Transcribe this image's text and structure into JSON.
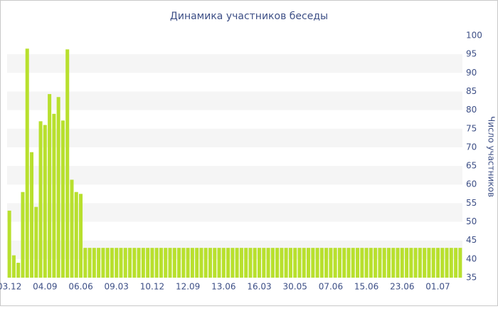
{
  "chart_data": {
    "type": "bar",
    "title": "Динамика участников беседы",
    "y_label": "Число участников",
    "color": "#b8e02e",
    "categories": [
      "03.12",
      null,
      null,
      null,
      null,
      null,
      null,
      null,
      "04.09",
      null,
      null,
      null,
      null,
      null,
      null,
      null,
      "06.06",
      null,
      null,
      null,
      null,
      null,
      null,
      null,
      "09.03",
      null,
      null,
      null,
      null,
      null,
      null,
      null,
      "10.12",
      null,
      null,
      null,
      null,
      null,
      null,
      null,
      "12.09",
      null,
      null,
      null,
      null,
      null,
      null,
      null,
      "13.06",
      null,
      null,
      null,
      null,
      null,
      null,
      null,
      "16.03",
      null,
      null,
      null,
      null,
      null,
      null,
      null,
      "30.05",
      null,
      null,
      null,
      null,
      null,
      null,
      null,
      "07.06",
      null,
      null,
      null,
      null,
      null,
      null,
      null,
      "15.06",
      null,
      null,
      null,
      null,
      null,
      null,
      null,
      "23.06",
      null,
      null,
      null,
      null,
      null,
      null,
      null,
      "01.07",
      null,
      null,
      null,
      null,
      null
    ],
    "values": [
      53,
      41,
      39,
      58,
      96.5,
      68.7,
      54,
      77,
      76,
      84.3,
      79,
      83.5,
      77.2,
      96.3,
      61.3,
      58,
      57.5,
      43,
      43,
      43,
      43,
      43,
      43,
      43,
      43,
      43,
      43,
      43,
      43,
      43,
      43,
      43,
      43,
      43,
      43,
      43,
      43,
      43,
      43,
      43,
      43,
      43,
      43,
      43,
      43,
      43,
      43,
      43,
      43,
      43,
      43,
      43,
      43,
      43,
      43,
      43,
      43,
      43,
      43,
      43,
      43,
      43,
      43,
      43,
      43,
      43,
      43,
      43,
      43,
      43,
      43,
      43,
      43,
      43,
      43,
      43,
      43,
      43,
      43,
      43,
      43,
      43,
      43,
      43,
      43,
      43,
      43,
      43,
      43,
      43,
      43,
      43,
      43,
      43,
      43,
      43,
      43,
      43,
      43,
      43,
      43,
      43
    ],
    "ylim": [
      35,
      100
    ],
    "yticks": [
      35,
      40,
      45,
      50,
      55,
      60,
      65,
      70,
      75,
      80,
      85,
      90,
      95,
      100
    ],
    "grid": "bands",
    "y_axis_side": "right"
  }
}
